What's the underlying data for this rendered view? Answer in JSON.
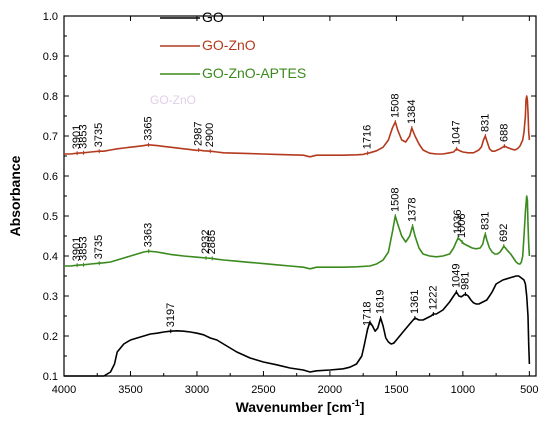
{
  "chart_data": {
    "type": "line",
    "xlabel": "Wavenumber [cm",
    "xlabel_sup": "-1",
    "xlabel_end": "]",
    "ylabel": "Absorbance",
    "xlim": [
      4000,
      450
    ],
    "ylim": [
      0.1,
      1.0
    ],
    "x_reversed": true,
    "x_ticks": [
      4000,
      3500,
      3000,
      2500,
      2000,
      1500,
      1000,
      500
    ],
    "y_ticks": [
      0.1,
      0.2,
      0.3,
      0.4,
      0.5,
      0.6,
      0.7,
      0.8,
      0.9,
      1.0
    ],
    "grid": false,
    "legend_position": "top-center",
    "ghost_text": "GO-ZnO",
    "series": [
      {
        "name": "GO",
        "color": "#000000",
        "x": [
          4000,
          3900,
          3800,
          3700,
          3650,
          3620,
          3600,
          3550,
          3500,
          3450,
          3400,
          3350,
          3300,
          3250,
          3200,
          3150,
          3100,
          3050,
          3000,
          2950,
          2900,
          2850,
          2800,
          2700,
          2600,
          2500,
          2400,
          2300,
          2200,
          2150,
          2100,
          2000,
          1900,
          1850,
          1800,
          1760,
          1740,
          1718,
          1700,
          1680,
          1660,
          1640,
          1619,
          1600,
          1580,
          1560,
          1540,
          1520,
          1500,
          1450,
          1400,
          1361,
          1330,
          1300,
          1270,
          1240,
          1222,
          1200,
          1150,
          1100,
          1070,
          1049,
          1030,
          1010,
          995,
          981,
          960,
          940,
          920,
          900,
          880,
          850,
          820,
          800,
          780,
          750,
          700,
          650,
          600,
          580,
          560,
          540,
          530,
          520,
          510,
          505,
          500
        ],
        "values": [
          0.1,
          0.1,
          0.1,
          0.1,
          0.11,
          0.13,
          0.16,
          0.18,
          0.19,
          0.195,
          0.2,
          0.205,
          0.207,
          0.21,
          0.212,
          0.213,
          0.212,
          0.21,
          0.207,
          0.203,
          0.195,
          0.19,
          0.18,
          0.16,
          0.145,
          0.135,
          0.128,
          0.12,
          0.115,
          0.11,
          0.113,
          0.115,
          0.118,
          0.122,
          0.13,
          0.15,
          0.18,
          0.215,
          0.235,
          0.225,
          0.212,
          0.22,
          0.245,
          0.225,
          0.195,
          0.185,
          0.18,
          0.182,
          0.19,
          0.21,
          0.23,
          0.245,
          0.24,
          0.24,
          0.245,
          0.25,
          0.255,
          0.255,
          0.265,
          0.285,
          0.3,
          0.31,
          0.3,
          0.298,
          0.302,
          0.305,
          0.3,
          0.29,
          0.283,
          0.28,
          0.28,
          0.285,
          0.29,
          0.3,
          0.31,
          0.33,
          0.34,
          0.345,
          0.35,
          0.35,
          0.345,
          0.34,
          0.33,
          0.3,
          0.25,
          0.18,
          0.13
        ]
      },
      {
        "name": "GO-ZnO",
        "color": "#b43a1e",
        "x": [
          4000,
          3950,
          3901,
          3853,
          3800,
          3735,
          3700,
          3650,
          3600,
          3550,
          3500,
          3450,
          3400,
          3365,
          3300,
          3250,
          3200,
          3100,
          3050,
          3000,
          2987,
          2950,
          2900,
          2850,
          2800,
          2700,
          2600,
          2500,
          2400,
          2300,
          2200,
          2150,
          2100,
          2000,
          1900,
          1800,
          1750,
          1716,
          1700,
          1650,
          1600,
          1560,
          1530,
          1508,
          1490,
          1460,
          1430,
          1400,
          1384,
          1360,
          1330,
          1300,
          1250,
          1200,
          1150,
          1100,
          1070,
          1047,
          1030,
          1000,
          960,
          920,
          880,
          860,
          845,
          831,
          820,
          800,
          780,
          760,
          740,
          720,
          700,
          688,
          670,
          640,
          610,
          590,
          570,
          550,
          540,
          530,
          525,
          520,
          515,
          510,
          505,
          500
        ],
        "values": [
          0.655,
          0.655,
          0.657,
          0.658,
          0.66,
          0.662,
          0.662,
          0.665,
          0.668,
          0.67,
          0.672,
          0.674,
          0.676,
          0.678,
          0.676,
          0.674,
          0.672,
          0.668,
          0.666,
          0.664,
          0.665,
          0.663,
          0.662,
          0.66,
          0.658,
          0.657,
          0.656,
          0.655,
          0.654,
          0.653,
          0.652,
          0.648,
          0.652,
          0.652,
          0.652,
          0.653,
          0.654,
          0.657,
          0.658,
          0.663,
          0.672,
          0.69,
          0.72,
          0.735,
          0.715,
          0.69,
          0.685,
          0.7,
          0.72,
          0.7,
          0.68,
          0.665,
          0.657,
          0.655,
          0.655,
          0.658,
          0.66,
          0.668,
          0.664,
          0.66,
          0.658,
          0.658,
          0.665,
          0.673,
          0.69,
          0.7,
          0.688,
          0.668,
          0.662,
          0.662,
          0.665,
          0.668,
          0.672,
          0.675,
          0.672,
          0.668,
          0.665,
          0.668,
          0.675,
          0.69,
          0.71,
          0.75,
          0.79,
          0.8,
          0.79,
          0.76,
          0.71,
          0.69
        ]
      },
      {
        "name": "GO-ZnO-APTES",
        "color": "#3b8a1e",
        "x": [
          4000,
          3950,
          3901,
          3853,
          3800,
          3735,
          3700,
          3650,
          3600,
          3550,
          3500,
          3450,
          3400,
          3363,
          3300,
          3250,
          3200,
          3100,
          3000,
          2932,
          2885,
          2850,
          2800,
          2700,
          2600,
          2500,
          2400,
          2300,
          2200,
          2150,
          2100,
          2000,
          1900,
          1800,
          1700,
          1650,
          1600,
          1560,
          1530,
          1508,
          1490,
          1460,
          1430,
          1400,
          1378,
          1360,
          1330,
          1300,
          1250,
          1200,
          1150,
          1100,
          1070,
          1050,
          1036,
          1020,
          1006,
          990,
          960,
          930,
          900,
          870,
          850,
          840,
          831,
          820,
          800,
          780,
          760,
          740,
          720,
          700,
          692,
          680,
          660,
          640,
          620,
          600,
          580,
          570,
          560,
          550,
          540,
          530,
          520,
          515,
          510,
          505,
          500
        ],
        "values": [
          0.375,
          0.375,
          0.377,
          0.378,
          0.38,
          0.382,
          0.383,
          0.385,
          0.39,
          0.395,
          0.4,
          0.405,
          0.41,
          0.412,
          0.41,
          0.407,
          0.404,
          0.4,
          0.397,
          0.395,
          0.394,
          0.392,
          0.39,
          0.387,
          0.384,
          0.381,
          0.378,
          0.375,
          0.372,
          0.368,
          0.372,
          0.372,
          0.372,
          0.373,
          0.375,
          0.38,
          0.39,
          0.41,
          0.46,
          0.5,
          0.48,
          0.45,
          0.435,
          0.45,
          0.475,
          0.45,
          0.42,
          0.405,
          0.4,
          0.398,
          0.4,
          0.405,
          0.42,
          0.435,
          0.445,
          0.44,
          0.435,
          0.43,
          0.425,
          0.42,
          0.418,
          0.42,
          0.43,
          0.445,
          0.455,
          0.44,
          0.42,
          0.41,
          0.405,
          0.405,
          0.41,
          0.42,
          0.425,
          0.42,
          0.412,
          0.405,
          0.395,
          0.385,
          0.38,
          0.38,
          0.385,
          0.4,
          0.45,
          0.51,
          0.55,
          0.54,
          0.48,
          0.43,
          0.4
        ]
      }
    ],
    "annotations": [
      {
        "series": 1,
        "label": "3901",
        "x": 3901,
        "y": 0.657
      },
      {
        "series": 1,
        "label": "3853",
        "x": 3853,
        "y": 0.658
      },
      {
        "series": 1,
        "label": "3735",
        "x": 3735,
        "y": 0.662
      },
      {
        "series": 1,
        "label": "3365",
        "x": 3365,
        "y": 0.678
      },
      {
        "series": 1,
        "label": "2987",
        "x": 2987,
        "y": 0.665
      },
      {
        "series": 1,
        "label": "2900",
        "x": 2900,
        "y": 0.662
      },
      {
        "series": 1,
        "label": "1716",
        "x": 1716,
        "y": 0.657
      },
      {
        "series": 1,
        "label": "1508",
        "x": 1508,
        "y": 0.735
      },
      {
        "series": 1,
        "label": "1384",
        "x": 1384,
        "y": 0.72
      },
      {
        "series": 1,
        "label": "1047",
        "x": 1047,
        "y": 0.668
      },
      {
        "series": 1,
        "label": "831",
        "x": 831,
        "y": 0.7
      },
      {
        "series": 1,
        "label": "688",
        "x": 688,
        "y": 0.675
      },
      {
        "series": 2,
        "label": "3901",
        "x": 3901,
        "y": 0.377
      },
      {
        "series": 2,
        "label": "3853",
        "x": 3853,
        "y": 0.378
      },
      {
        "series": 2,
        "label": "3735",
        "x": 3735,
        "y": 0.382
      },
      {
        "series": 2,
        "label": "3363",
        "x": 3363,
        "y": 0.412
      },
      {
        "series": 2,
        "label": "2932",
        "x": 2932,
        "y": 0.395
      },
      {
        "series": 2,
        "label": "2885",
        "x": 2885,
        "y": 0.394
      },
      {
        "series": 2,
        "label": "1508",
        "x": 1508,
        "y": 0.5
      },
      {
        "series": 2,
        "label": "1378",
        "x": 1378,
        "y": 0.475
      },
      {
        "series": 2,
        "label": "1036",
        "x": 1036,
        "y": 0.445
      },
      {
        "series": 2,
        "label": "1006",
        "x": 1006,
        "y": 0.435
      },
      {
        "series": 2,
        "label": "831",
        "x": 831,
        "y": 0.455
      },
      {
        "series": 2,
        "label": "692",
        "x": 692,
        "y": 0.425
      },
      {
        "series": 0,
        "label": "3197",
        "x": 3197,
        "y": 0.212
      },
      {
        "series": 0,
        "label": "1718",
        "x": 1718,
        "y": 0.215
      },
      {
        "series": 0,
        "label": "1619",
        "x": 1619,
        "y": 0.245
      },
      {
        "series": 0,
        "label": "1361",
        "x": 1361,
        "y": 0.245
      },
      {
        "series": 0,
        "label": "1222",
        "x": 1222,
        "y": 0.255
      },
      {
        "series": 0,
        "label": "1049",
        "x": 1049,
        "y": 0.31
      },
      {
        "series": 0,
        "label": "981",
        "x": 981,
        "y": 0.305
      }
    ]
  }
}
